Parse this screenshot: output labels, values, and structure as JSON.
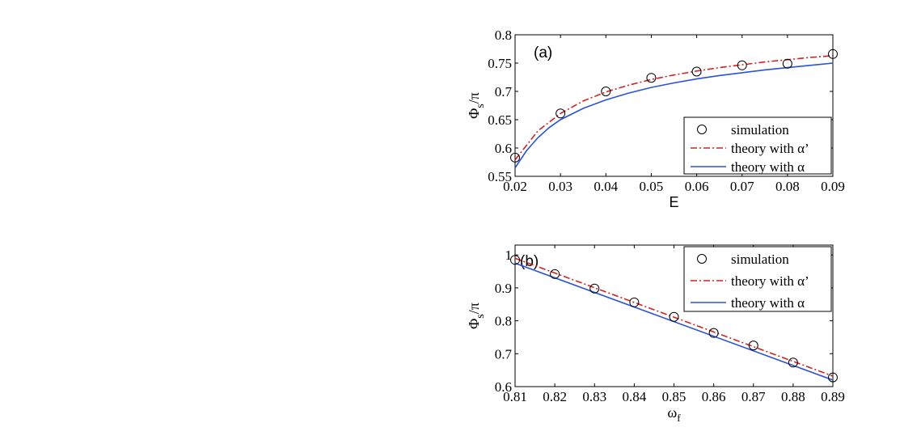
{
  "chart_data": [
    {
      "type": "line",
      "panel_label": "(a)",
      "xlabel": "E",
      "ylabel_main": "Φ",
      "ylabel_sub": "s",
      "ylabel_tail": "/π",
      "xlim": [
        0.02,
        0.09
      ],
      "ylim": [
        0.55,
        0.8
      ],
      "xticks": [
        0.02,
        0.03,
        0.04,
        0.05,
        0.06,
        0.07,
        0.08,
        0.09
      ],
      "xtick_labels": [
        "0.02",
        "0.03",
        "0.04",
        "0.05",
        "0.06",
        "0.07",
        "0.08",
        "0.09"
      ],
      "yticks": [
        0.55,
        0.6,
        0.65,
        0.7,
        0.75,
        0.8
      ],
      "ytick_labels": [
        "0.55",
        "0.6",
        "0.65",
        "0.7",
        "0.75",
        "0.8"
      ],
      "grid": false,
      "legend_position": "lower-right",
      "series": [
        {
          "name": "simulation",
          "style": "markers",
          "color": "#000000",
          "x": [
            0.02,
            0.03,
            0.04,
            0.05,
            0.06,
            0.07,
            0.08,
            0.09
          ],
          "y": [
            0.583,
            0.661,
            0.7,
            0.724,
            0.735,
            0.746,
            0.749,
            0.766
          ]
        },
        {
          "name": "theory with α’",
          "style": "dashdot",
          "color": "#d62020",
          "x": [
            0.02,
            0.025,
            0.03,
            0.035,
            0.04,
            0.045,
            0.05,
            0.055,
            0.06,
            0.065,
            0.07,
            0.075,
            0.08,
            0.085,
            0.09
          ],
          "y": [
            0.579,
            0.63,
            0.661,
            0.683,
            0.699,
            0.711,
            0.721,
            0.729,
            0.736,
            0.742,
            0.747,
            0.752,
            0.756,
            0.76,
            0.763
          ]
        },
        {
          "name": "theory with α",
          "style": "solid",
          "color": "#2a52d8",
          "x": [
            0.02,
            0.0225,
            0.025,
            0.0275,
            0.03,
            0.035,
            0.04,
            0.045,
            0.05,
            0.055,
            0.06,
            0.065,
            0.07,
            0.075,
            0.08,
            0.085,
            0.09
          ],
          "y": [
            0.565,
            0.595,
            0.618,
            0.636,
            0.65,
            0.67,
            0.685,
            0.697,
            0.707,
            0.715,
            0.722,
            0.728,
            0.733,
            0.738,
            0.742,
            0.746,
            0.75
          ]
        }
      ]
    },
    {
      "type": "line",
      "panel_label": "(b)",
      "xlabel": "ω",
      "xlabel_sub": "f",
      "ylabel_main": "Φ",
      "ylabel_sub": "s",
      "ylabel_tail": "/π",
      "xlim": [
        0.81,
        0.89
      ],
      "ylim": [
        0.6,
        1.03
      ],
      "xticks": [
        0.81,
        0.82,
        0.83,
        0.84,
        0.85,
        0.86,
        0.87,
        0.88,
        0.89
      ],
      "xtick_labels": [
        "0.81",
        "0.82",
        "0.83",
        "0.84",
        "0.85",
        "0.86",
        "0.87",
        "0.88",
        "0.89"
      ],
      "yticks": [
        0.6,
        0.7,
        0.8,
        0.9,
        1.0
      ],
      "ytick_labels": [
        "0.6",
        "0.7",
        "0.8",
        "0.9",
        "1"
      ],
      "grid": false,
      "legend_position": "top-right",
      "series": [
        {
          "name": "simulation",
          "style": "markers",
          "color": "#000000",
          "x": [
            0.81,
            0.82,
            0.83,
            0.84,
            0.85,
            0.86,
            0.87,
            0.88,
            0.89
          ],
          "y": [
            0.985,
            0.942,
            0.898,
            0.856,
            0.812,
            0.763,
            0.725,
            0.673,
            0.628
          ]
        },
        {
          "name": "theory with α’",
          "style": "dashdot",
          "color": "#d62020",
          "x": [
            0.81,
            0.89
          ],
          "y": [
            0.99,
            0.632
          ]
        },
        {
          "name": "theory with α",
          "style": "solid",
          "color": "#2a52d8",
          "x": [
            0.81,
            0.89
          ],
          "y": [
            0.975,
            0.62
          ]
        }
      ]
    }
  ]
}
